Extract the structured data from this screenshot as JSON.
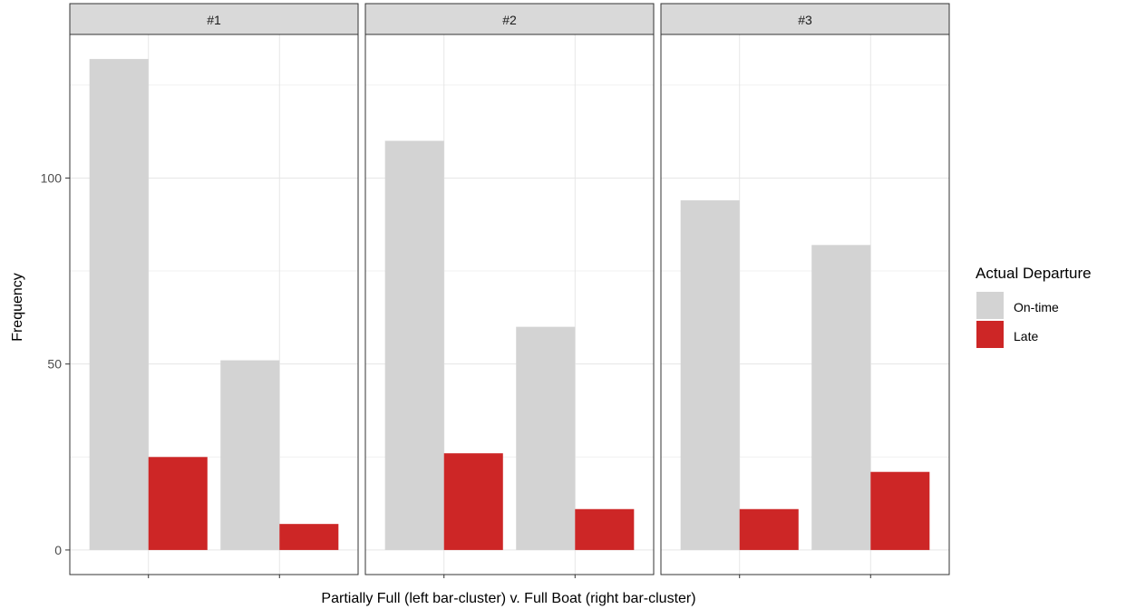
{
  "chart_data": {
    "type": "bar",
    "facets": [
      "#1",
      "#2",
      "#3"
    ],
    "categories": [
      "Partially Full",
      "Full Boat"
    ],
    "series": [
      {
        "name": "On-time",
        "color": "#d3d3d3",
        "values": [
          [
            132,
            51
          ],
          [
            110,
            60
          ],
          [
            94,
            82
          ]
        ]
      },
      {
        "name": "Late",
        "color": "#cd2626",
        "values": [
          [
            25,
            7
          ],
          [
            26,
            11
          ],
          [
            11,
            21
          ]
        ]
      }
    ],
    "xlabel": "Partially Full (left bar-cluster) v. Full Boat (right bar-cluster)",
    "ylabel": "Frequency",
    "yticks": [
      0,
      50,
      100
    ],
    "ylim": [
      -6.6,
      138.6
    ],
    "legend": {
      "title": "Actual Departure",
      "position": "right"
    },
    "grid": true
  }
}
